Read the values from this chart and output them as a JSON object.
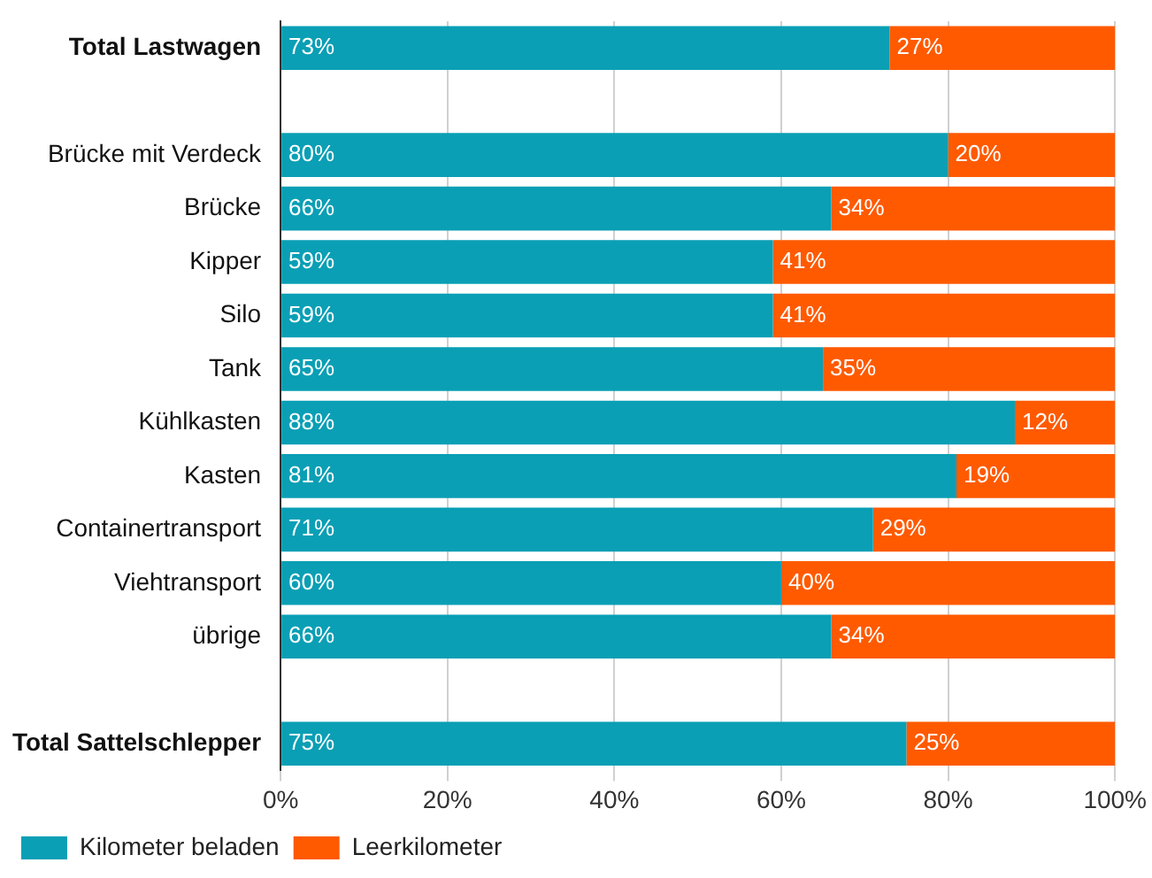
{
  "chart_data": {
    "type": "bar",
    "orientation": "horizontal",
    "stacked": true,
    "categories": [
      "Total Lastwagen",
      null,
      "Brücke mit Verdeck",
      "Brücke",
      "Kipper",
      "Silo",
      "Tank",
      "Kühlkasten",
      "Kasten",
      "Containertransport",
      "Viehtransport",
      "übrige",
      null,
      "Total Sattelschlepper"
    ],
    "series": [
      {
        "name": "Kilometer beladen",
        "color": "#0a9fb5",
        "values": [
          73,
          null,
          80,
          66,
          59,
          59,
          65,
          88,
          81,
          71,
          60,
          66,
          null,
          75
        ],
        "value_labels": [
          "73%",
          null,
          "80%",
          "66%",
          "59%",
          "59%",
          "65%",
          "88%",
          "81%",
          "71%",
          "60%",
          "66%",
          null,
          "75%"
        ]
      },
      {
        "name": "Leerkilometer",
        "color": "#ff5a00",
        "values": [
          27,
          null,
          20,
          34,
          41,
          41,
          35,
          12,
          19,
          29,
          40,
          34,
          null,
          25
        ],
        "value_labels": [
          "27%",
          null,
          "20%",
          "34%",
          "41%",
          "41%",
          "35%",
          "12%",
          "19%",
          "29%",
          "40%",
          "34%",
          null,
          "25%"
        ]
      }
    ],
    "xlim": [
      0,
      100
    ],
    "xticks": [
      {
        "value": 0,
        "label": "0%"
      },
      {
        "value": 20,
        "label": "20%"
      },
      {
        "value": 40,
        "label": "40%"
      },
      {
        "value": 60,
        "label": "60%"
      },
      {
        "value": 80,
        "label": "80%"
      },
      {
        "value": 100,
        "label": "100%"
      }
    ],
    "grid": "x",
    "legend": "bottom left"
  }
}
